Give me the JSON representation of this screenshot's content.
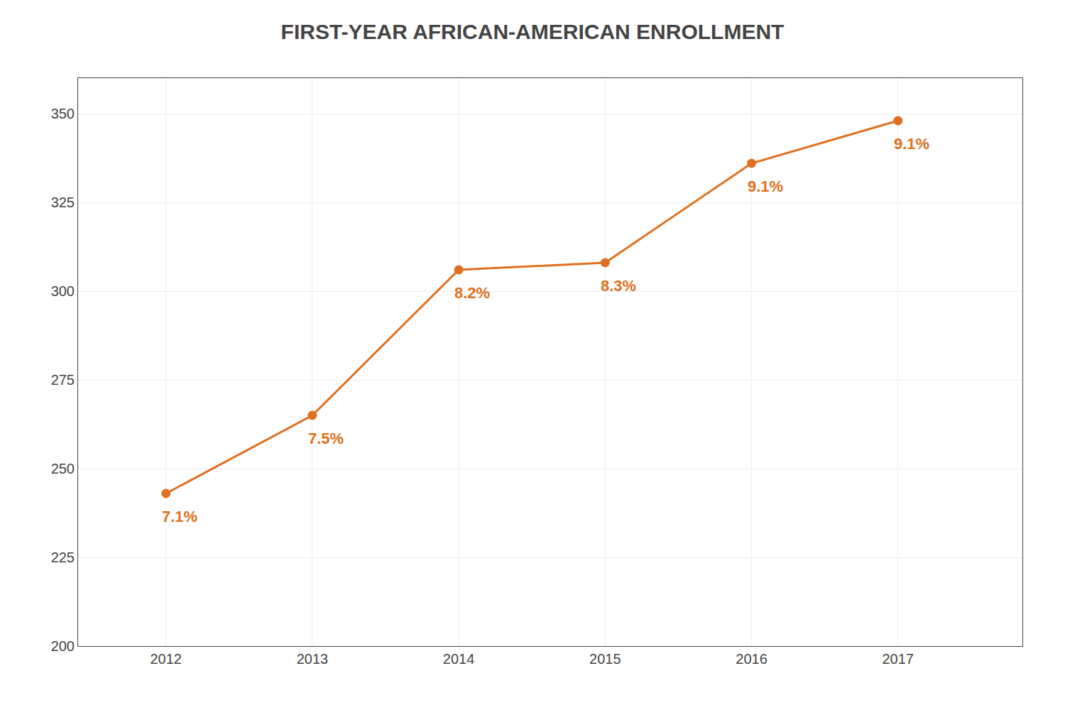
{
  "chart_data": {
    "type": "line",
    "title": "FIRST-YEAR AFRICAN-AMERICAN ENROLLMENT",
    "x": [
      2012,
      2013,
      2014,
      2015,
      2016,
      2017
    ],
    "values": [
      243,
      265,
      306,
      308,
      336,
      348
    ],
    "annotations": [
      "7.1%",
      "7.5%",
      "8.2%",
      "8.3%",
      "9.1%",
      "9.1%"
    ],
    "color": "#E07020",
    "marker": "circle",
    "line_style": "solid",
    "xlim": [
      2011.4,
      2017.85
    ],
    "xticks": [
      2012,
      2013,
      2014,
      2015,
      2016,
      2017
    ],
    "ylim": [
      200,
      360
    ],
    "yticks": [
      200,
      225,
      250,
      275,
      300,
      325,
      350
    ],
    "grid": true
  }
}
